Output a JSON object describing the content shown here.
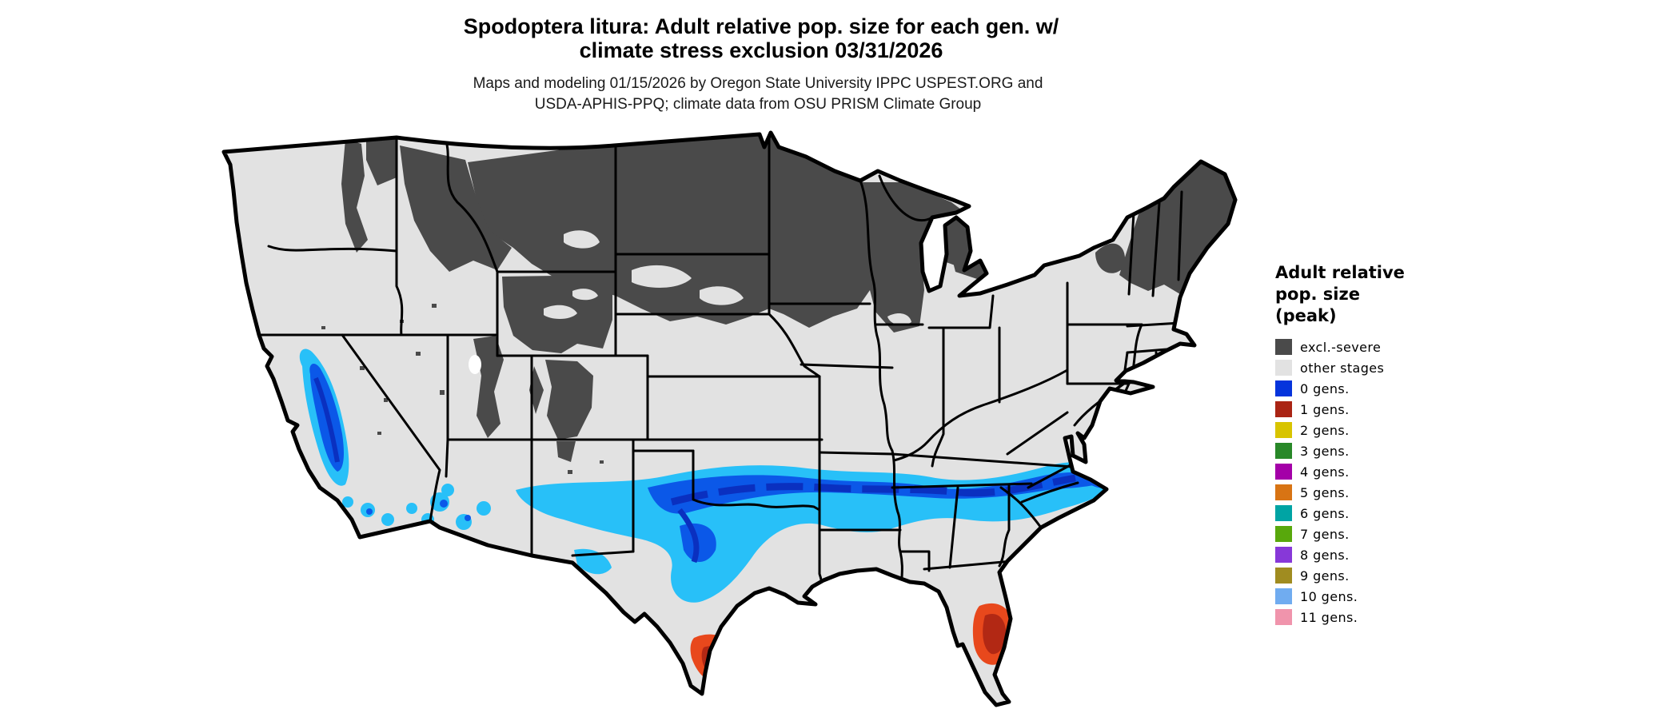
{
  "title": {
    "line1": "Spodoptera litura: Adult relative pop. size for each gen. w/",
    "line2": "climate stress exclusion 03/31/2026"
  },
  "subtitle": {
    "line1": "Maps and modeling 01/15/2026 by Oregon State University IPPC USPEST.ORG and",
    "line2": "USDA-APHIS-PPQ; climate data from OSU PRISM Climate Group"
  },
  "legend": {
    "title_line1": "Adult relative",
    "title_line2": "pop. size",
    "title_line3": "(peak)",
    "items": [
      {
        "label": "excl.-severe",
        "color": "#4a4a4a"
      },
      {
        "label": "other stages",
        "color": "#e2e2e2"
      },
      {
        "label": "0 gens.",
        "color": "#0534dc"
      },
      {
        "label": "1 gens.",
        "color": "#aa2414"
      },
      {
        "label": "2 gens.",
        "color": "#d8c400"
      },
      {
        "label": "3 gens.",
        "color": "#288828"
      },
      {
        "label": "4 gens.",
        "color": "#a400a8"
      },
      {
        "label": "5 gens.",
        "color": "#d87414"
      },
      {
        "label": "6 gens.",
        "color": "#00a4a4"
      },
      {
        "label": "7 gens.",
        "color": "#58a80c"
      },
      {
        "label": "8 gens.",
        "color": "#8738d8"
      },
      {
        "label": "9 gens.",
        "color": "#a08c20"
      },
      {
        "label": "10 gens.",
        "color": "#70acf0"
      },
      {
        "label": "11 gens.",
        "color": "#f094ac"
      }
    ]
  },
  "map": {
    "colors": {
      "base_other_stages": "#e2e2e2",
      "excluded_severe": "#4a4a4a",
      "border": "#000000",
      "gen0_light": "#28c0f8",
      "gen0_mid": "#0b58e8",
      "gen0_deep": "#0a30c0",
      "gen1_outer": "#e8481c",
      "gen1_core": "#b22814",
      "water": "#ffffff"
    },
    "regions": {
      "northern_tier": "excl.-severe: eastern Montana, Dakotas, Minnesota, Wisconsin, upper Michigan",
      "rockies": "excl.-severe: Idaho/western Montana, Wyoming, Utah and Colorado mountains",
      "northeast": "excl.-severe: Maine, Vermont, New Hampshire, Adirondacks",
      "southern_band": "0 gens.: band from Arizona/New Mexico through Texas, Oklahoma, the mid-South to the Carolina coast",
      "california_valley": "0 gens.: California Central Valley and south coast",
      "south_texas": "1 gens.: lower Rio Grande valley",
      "central_florida": "1 gens.: central Florida peninsula"
    }
  }
}
